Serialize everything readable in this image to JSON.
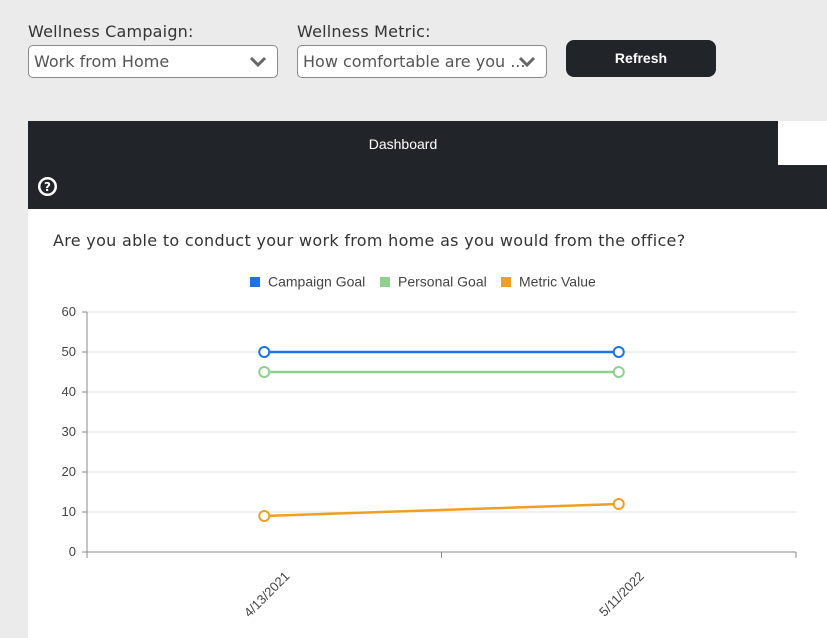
{
  "filters": {
    "campaign_label": "Wellness Campaign:",
    "campaign_value": "Work from Home",
    "metric_label": "Wellness Metric:",
    "metric_value": "How comfortable are you ...",
    "refresh_label": "Refresh"
  },
  "panel": {
    "tab_label": "Dashboard",
    "help_icon": "question-circle-icon",
    "question": "Are you able to conduct your work from home as you would from the office?"
  },
  "colors": {
    "campaign_goal": "#1a73e8",
    "personal_goal": "#8fd08f",
    "metric_value": "#f0a020"
  },
  "chart_data": {
    "type": "line",
    "x": [
      "4/13/2021",
      "5/11/2022"
    ],
    "series": [
      {
        "name": "Campaign Goal",
        "values": [
          50,
          50
        ]
      },
      {
        "name": "Personal Goal",
        "values": [
          45,
          45
        ]
      },
      {
        "name": "Metric Value",
        "values": [
          9,
          12
        ]
      }
    ],
    "yticks": [
      "0",
      "10",
      "20",
      "30",
      "40",
      "50",
      "60"
    ],
    "ylim": [
      0,
      60
    ],
    "grid": true,
    "legend": "top-center"
  }
}
